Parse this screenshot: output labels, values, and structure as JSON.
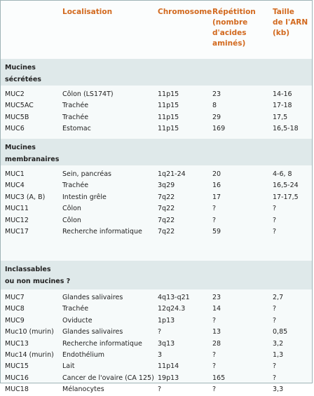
{
  "headers": [
    "",
    "Localisation",
    "Chromosome",
    "Répétition\n(nombre\nd'acides\naminés)",
    "Taille\nde l'ARN\n(kb)"
  ],
  "sections": [
    {
      "title": "Mucines\nsécrétées",
      "rows": [
        [
          "MUC2",
          "Côlon (LS174T)",
          "11p15",
          "23",
          "14-16"
        ],
        [
          "MUC5AC",
          "Trachée",
          "11p15",
          "8",
          "17-18"
        ],
        [
          "MUC5B",
          "Trachée",
          "11p15",
          "29",
          "17,5"
        ],
        [
          "MUC6",
          "Estomac",
          "11p15",
          "169",
          "16,5-18"
        ]
      ]
    },
    {
      "title": "Mucines\nmembranaires",
      "rows": [
        [
          "MUC1",
          "Sein, pancréas",
          "1q21-24",
          "20",
          "4-6, 8"
        ],
        [
          "MUC4",
          "Trachée",
          "3q29",
          "16",
          "16,5-24"
        ],
        [
          "MUC3 (A, B)",
          "Intestin grêle",
          "7q22",
          "17",
          "17-17,5"
        ],
        [
          "MUC11",
          "Côlon",
          "7q22",
          "?",
          "?"
        ],
        [
          "MUC12",
          "Côlon",
          "7q22",
          "?",
          "?"
        ],
        [
          "MUC17",
          "Recherche informatique",
          "7q22",
          "59",
          "?"
        ]
      ]
    },
    {
      "title": "Inclassables\nou non mucines ?",
      "rows": [
        [
          "MUC7",
          "Glandes salivaires",
          "4q13-q21",
          "23",
          "2,7"
        ],
        [
          "MUC8",
          "Trachée",
          "12q24.3",
          "14",
          "?"
        ],
        [
          "MUC9",
          "Oviducte",
          "1p13",
          "?",
          "?"
        ],
        [
          "Muc10 (murin)",
          "Glandes salivaires",
          "?",
          "13",
          "0,85"
        ],
        [
          "MUC13",
          "Recherche informatique",
          "3q13",
          "28",
          "3,2"
        ],
        [
          "Muc14 (murin)",
          "Endothélium",
          "3",
          "?",
          "1,3"
        ],
        [
          "MUC15",
          "Lait",
          "11p14",
          "?",
          "?"
        ],
        [
          "MUC16",
          "Cancer de l'ovaire (CA 125)",
          "19p13",
          "165",
          "?"
        ],
        [
          "MUC18",
          "Mélanocytes",
          "?",
          "?",
          "3,3"
        ]
      ]
    }
  ]
}
